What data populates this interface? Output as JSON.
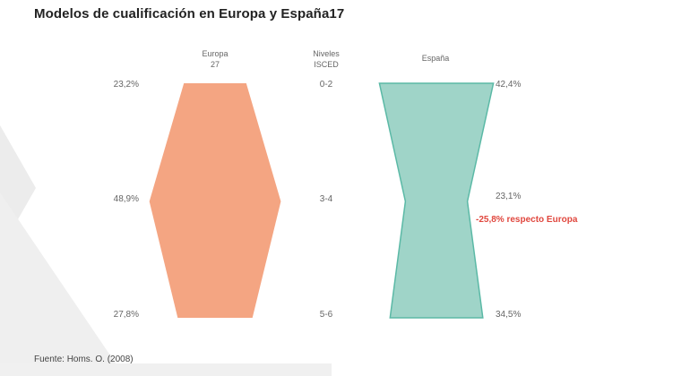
{
  "title": "Modelos de cualificación en Europa y España17",
  "source": "Fuente: Homs. O. (2008)",
  "chart_data": {
    "type": "area",
    "title": "Modelos de cualificación en Europa y España17",
    "levels_header": [
      "Niveles",
      "ISCED"
    ],
    "levels": [
      "0-2",
      "3-4",
      "5-6"
    ],
    "series": [
      {
        "name_lines": [
          "Europa",
          "27"
        ],
        "values": [
          23.2,
          48.9,
          27.8
        ],
        "labels": [
          "23,2%",
          "48,9%",
          "27,8%"
        ],
        "color": "#f4a582"
      },
      {
        "name_lines": [
          "España"
        ],
        "values": [
          42.4,
          23.1,
          34.5
        ],
        "labels": [
          "42,4%",
          "23,1%",
          "34,5%"
        ],
        "color": "#9fd4c8"
      }
    ],
    "annotation": "-25,8% respecto Europa",
    "annotation_color": "#e0473e"
  }
}
